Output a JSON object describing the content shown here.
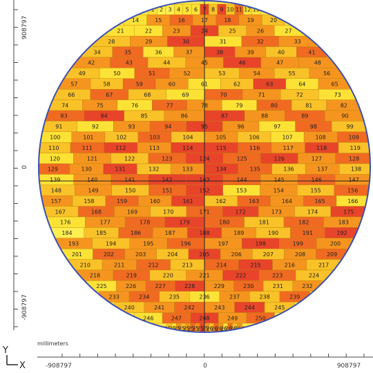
{
  "chart_data": {
    "type": "heatmap",
    "title": "",
    "xlabel": "X",
    "ylabel": "Y",
    "unit_label": "millimeters",
    "x_ticks": [
      "-908797",
      "0",
      "908797"
    ],
    "y_ticks": [
      "908797",
      "0",
      "-908797"
    ],
    "xlim": [
      -908797,
      908797
    ],
    "ylim": [
      -908797,
      908797
    ],
    "grid": false,
    "die_count": 266,
    "palette": [
      "#e8442a",
      "#f06a22",
      "#f5951f",
      "#f9c228",
      "#fde236",
      "#ffef50"
    ],
    "rows": [
      {
        "first_die": 1,
        "count": 13
      },
      {
        "first_die": 14,
        "count": 7
      },
      {
        "first_die": 21,
        "count": 7
      },
      {
        "first_die": 28,
        "count": 6
      },
      {
        "first_die": 34,
        "count": 8
      },
      {
        "first_die": 42,
        "count": 7
      },
      {
        "first_die": 49,
        "count": 8
      },
      {
        "first_die": 57,
        "count": 9
      },
      {
        "first_die": 66,
        "count": 8
      },
      {
        "first_die": 74,
        "count": 9
      },
      {
        "first_die": 83,
        "count": 8
      },
      {
        "first_die": 91,
        "count": 9
      },
      {
        "first_die": 100,
        "count": 10
      },
      {
        "first_die": 110,
        "count": 10
      },
      {
        "first_die": 120,
        "count": 9
      },
      {
        "first_die": 129,
        "count": 10
      },
      {
        "first_die": 139,
        "count": 9
      },
      {
        "first_die": 148,
        "count": 9
      },
      {
        "first_die": 157,
        "count": 10
      },
      {
        "first_die": 167,
        "count": 9
      },
      {
        "first_die": 176,
        "count": 8
      },
      {
        "first_die": 184,
        "count": 9
      },
      {
        "first_die": 193,
        "count": 8
      },
      {
        "first_die": 201,
        "count": 9
      },
      {
        "first_die": 210,
        "count": 8
      },
      {
        "first_die": 218,
        "count": 7
      },
      {
        "first_die": 225,
        "count": 8
      },
      {
        "first_die": 233,
        "count": 7
      },
      {
        "first_die": 240,
        "count": 6
      },
      {
        "first_die": 246,
        "count": 5
      },
      {
        "first_die": 251,
        "count": 16
      }
    ],
    "values": [
      4,
      5,
      5,
      4,
      4,
      4,
      0,
      3,
      0,
      3,
      1,
      4,
      4,
      4,
      2,
      1,
      2,
      1,
      2,
      3,
      4,
      4,
      2,
      0,
      3,
      2,
      4,
      3,
      2,
      0,
      4,
      1,
      2,
      3,
      1,
      4,
      2,
      0,
      2,
      3,
      1,
      2,
      1,
      3,
      2,
      0,
      2,
      2,
      3,
      4,
      1,
      2,
      3,
      2,
      3,
      2,
      2,
      3,
      1,
      2,
      4,
      3,
      0,
      4,
      2,
      3,
      1,
      3,
      4,
      1,
      2,
      3,
      4,
      3,
      2,
      4,
      1,
      2,
      4,
      1,
      3,
      2,
      1,
      0,
      3,
      2,
      0,
      2,
      1,
      2,
      3,
      4,
      2,
      1,
      0,
      2,
      4,
      1,
      3,
      4,
      2,
      3,
      1,
      3,
      2,
      3,
      4,
      2,
      1,
      3,
      1,
      0,
      2,
      0,
      0,
      1,
      2,
      0,
      3,
      4,
      2,
      3,
      1,
      0,
      1,
      0,
      2,
      1,
      1,
      2,
      0,
      3,
      2,
      0,
      1,
      3,
      2,
      3,
      4,
      2,
      1,
      0,
      0,
      1,
      2,
      1,
      2,
      3,
      2,
      3,
      1,
      0,
      4,
      2,
      3,
      1,
      2,
      3,
      1,
      2,
      0,
      3,
      1,
      2,
      1,
      4,
      3,
      1,
      2,
      3,
      1,
      0,
      2,
      3,
      0,
      4,
      2,
      1,
      0,
      1,
      3,
      1,
      2,
      5,
      3,
      1,
      2,
      0,
      2,
      3,
      1,
      0,
      2,
      3,
      2,
      1,
      2,
      0,
      1,
      2,
      4,
      1,
      2,
      3,
      0,
      2,
      3,
      2,
      1,
      3,
      2,
      1,
      3,
      1,
      0,
      2,
      3,
      2,
      1,
      3,
      2,
      0,
      1,
      3,
      4,
      2,
      1,
      0,
      2,
      1,
      3,
      2,
      2,
      1,
      3,
      4,
      2,
      3,
      1,
      3,
      2,
      1,
      2,
      0,
      3,
      4,
      1,
      0,
      2,
      1,
      3,
      4,
      2,
      3,
      2,
      1,
      2,
      0,
      2,
      3,
      1,
      2,
      4,
      1,
      3,
      2
    ]
  }
}
